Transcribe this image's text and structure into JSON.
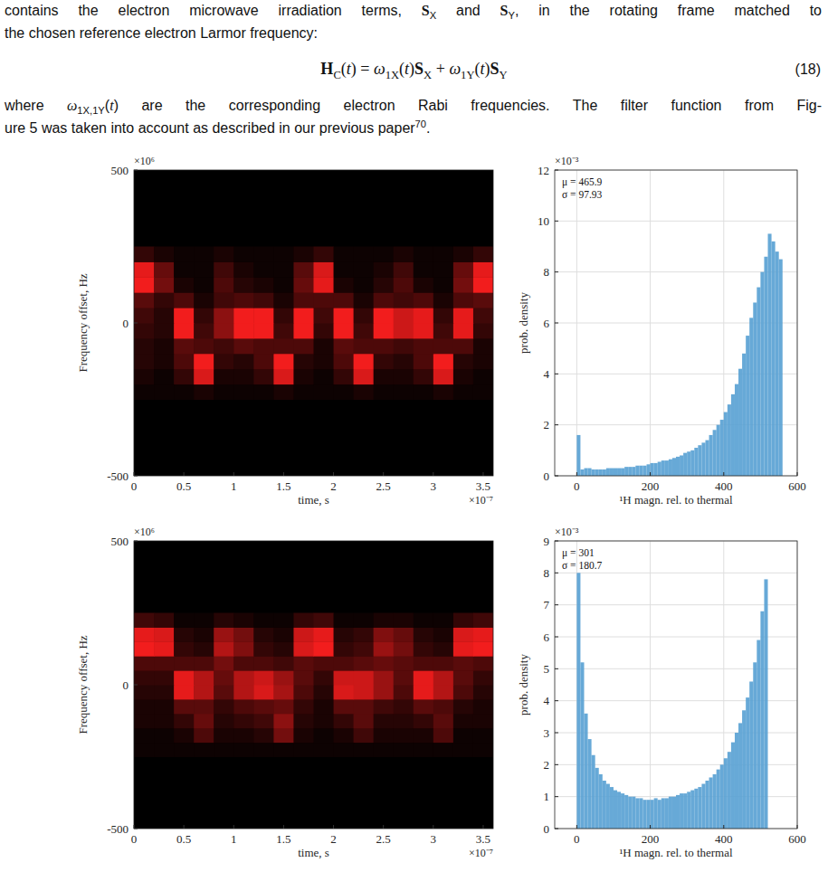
{
  "text": {
    "lines_before": [
      [
        {
          "text": "contains the electron microwave irradiation terms, ",
          "style": "normal"
        },
        {
          "text": "S",
          "style": "bold"
        },
        {
          "text": "X",
          "style": "sub"
        },
        {
          "text": " and ",
          "style": "normal"
        },
        {
          "text": "S",
          "style": "bold"
        },
        {
          "text": "Y",
          "style": "sub"
        },
        {
          "text": ", in the rotating frame matched to",
          "style": "normal"
        }
      ],
      [
        {
          "text": "the chosen reference electron Larmor frequency:",
          "style": "normal"
        }
      ]
    ],
    "equation": {
      "segments": [
        {
          "text": "H",
          "style": "bold"
        },
        {
          "text": "C",
          "style": "sub"
        },
        {
          "text": "(",
          "style": "normal"
        },
        {
          "text": "t",
          "style": "italic"
        },
        {
          "text": ") = ",
          "style": "normal"
        },
        {
          "text": "ω",
          "style": "italic"
        },
        {
          "text": "1X",
          "style": "sub"
        },
        {
          "text": "(",
          "style": "normal"
        },
        {
          "text": "t",
          "style": "italic"
        },
        {
          "text": ")",
          "style": "normal"
        },
        {
          "text": "S",
          "style": "bold"
        },
        {
          "text": "X",
          "style": "sub"
        },
        {
          "text": " + ",
          "style": "normal"
        },
        {
          "text": "ω",
          "style": "italic"
        },
        {
          "text": "1Y",
          "style": "sub"
        },
        {
          "text": "(",
          "style": "normal"
        },
        {
          "text": "t",
          "style": "italic"
        },
        {
          "text": ")",
          "style": "normal"
        },
        {
          "text": "S",
          "style": "bold"
        },
        {
          "text": "Y",
          "style": "sub"
        }
      ],
      "number": "(18)"
    },
    "lines_after": [
      [
        {
          "text": "where ",
          "style": "normal"
        },
        {
          "text": "ω",
          "style": "italic"
        },
        {
          "text": "1X,1Y",
          "style": "sub"
        },
        {
          "text": "(",
          "style": "normal"
        },
        {
          "text": "t",
          "style": "italic"
        },
        {
          "text": ")",
          "style": "normal"
        },
        {
          "text": " are the corresponding electron Rabi frequencies. The filter function from Fig-",
          "style": "normal"
        }
      ],
      [
        {
          "text": "ure 5 was taken into account as described in our previous paper",
          "style": "normal"
        },
        {
          "text": "70",
          "style": "sup"
        },
        {
          "text": ".",
          "style": "normal"
        }
      ]
    ]
  },
  "chart_data": [
    {
      "type": "heatmap",
      "x_label": "time, s",
      "y_label": "Frequency offset, Hz",
      "x_multiplier": "×10⁻⁷",
      "y_multiplier": "×10⁶",
      "xlim": [
        0,
        3.6
      ],
      "ylim": [
        -500,
        500
      ],
      "xticks": [
        0,
        0.5,
        1,
        1.5,
        2,
        2.5,
        3,
        3.5
      ],
      "yticks": [
        -500,
        0,
        500
      ],
      "grid": false,
      "color": "#ff1e1e",
      "x_edges": [
        0,
        0.2,
        0.4,
        0.6,
        0.8,
        1.0,
        1.2,
        1.4,
        1.6,
        1.8,
        2.0,
        2.2,
        2.4,
        2.6,
        2.8,
        3.0,
        3.2,
        3.4,
        3.6
      ],
      "y_edges": [
        -250,
        -200,
        -150,
        -100,
        -50,
        0,
        50,
        100,
        150,
        200,
        250
      ],
      "cells": [
        [
          0.05,
          0.05,
          0.05,
          0.1,
          0.05,
          0.05,
          0.05,
          0.1,
          0.05,
          0.05,
          0.05,
          0.1,
          0.05,
          0.05,
          0.05,
          0.1,
          0.05,
          0.05
        ],
        [
          0.1,
          0.05,
          0.2,
          0.85,
          0.1,
          0.1,
          0.2,
          0.85,
          0.1,
          0.05,
          0.2,
          0.85,
          0.1,
          0.1,
          0.2,
          0.85,
          0.1,
          0.05
        ],
        [
          0.15,
          0.1,
          0.3,
          0.95,
          0.2,
          0.15,
          0.3,
          0.95,
          0.15,
          0.1,
          0.3,
          0.95,
          0.2,
          0.15,
          0.3,
          0.95,
          0.15,
          0.1
        ],
        [
          0.15,
          0.1,
          0.35,
          0.3,
          0.25,
          0.35,
          0.3,
          0.3,
          0.3,
          0.1,
          0.35,
          0.3,
          0.3,
          0.25,
          0.3,
          0.3,
          0.3,
          0.1
        ],
        [
          0.2,
          0.15,
          0.95,
          0.25,
          0.55,
          0.95,
          0.95,
          0.25,
          0.95,
          0.2,
          0.95,
          0.25,
          0.95,
          0.8,
          0.9,
          0.25,
          0.9,
          0.2
        ],
        [
          0.25,
          0.15,
          0.95,
          0.2,
          0.55,
          0.95,
          0.95,
          0.2,
          0.95,
          0.25,
          0.95,
          0.2,
          0.95,
          0.8,
          0.9,
          0.2,
          0.9,
          0.25
        ],
        [
          0.35,
          0.2,
          0.3,
          0.1,
          0.25,
          0.3,
          0.25,
          0.1,
          0.3,
          0.3,
          0.3,
          0.1,
          0.3,
          0.25,
          0.3,
          0.1,
          0.3,
          0.35
        ],
        [
          0.95,
          0.45,
          0.1,
          0.05,
          0.3,
          0.15,
          0.1,
          0.05,
          0.4,
          0.9,
          0.1,
          0.05,
          0.15,
          0.3,
          0.1,
          0.05,
          0.45,
          0.95
        ],
        [
          0.9,
          0.4,
          0.05,
          0.05,
          0.25,
          0.1,
          0.05,
          0.05,
          0.35,
          0.85,
          0.05,
          0.05,
          0.1,
          0.25,
          0.05,
          0.05,
          0.4,
          0.9
        ],
        [
          0.2,
          0.1,
          0.05,
          0.05,
          0.1,
          0.05,
          0.05,
          0.05,
          0.1,
          0.2,
          0.05,
          0.05,
          0.05,
          0.1,
          0.05,
          0.05,
          0.1,
          0.2
        ]
      ]
    },
    {
      "type": "histogram",
      "x_label": "¹H magn. rel. to thermal",
      "y_label": "prob. density",
      "y_multiplier": "×10⁻³",
      "xlim": [
        -60,
        600
      ],
      "ylim": [
        0,
        12
      ],
      "xticks": [
        0,
        200,
        400,
        600
      ],
      "yticks": [
        0,
        2,
        4,
        6,
        8,
        10,
        12
      ],
      "grid": true,
      "color": "#56a0d3",
      "annotations": [
        "μ = 465.9",
        "σ = 97.93"
      ],
      "bins": [
        0,
        10,
        20,
        30,
        40,
        50,
        60,
        70,
        80,
        90,
        100,
        110,
        120,
        130,
        140,
        150,
        160,
        170,
        180,
        190,
        200,
        210,
        220,
        230,
        240,
        250,
        260,
        270,
        280,
        290,
        300,
        310,
        320,
        330,
        340,
        350,
        360,
        370,
        380,
        390,
        400,
        410,
        420,
        430,
        440,
        450,
        460,
        470,
        480,
        490,
        500,
        510,
        520,
        530,
        540,
        550,
        560
      ],
      "counts": [
        1.6,
        0.25,
        0.3,
        0.3,
        0.25,
        0.25,
        0.25,
        0.25,
        0.3,
        0.3,
        0.3,
        0.3,
        0.3,
        0.35,
        0.35,
        0.35,
        0.4,
        0.4,
        0.4,
        0.45,
        0.5,
        0.5,
        0.55,
        0.6,
        0.6,
        0.65,
        0.7,
        0.75,
        0.8,
        0.9,
        0.95,
        1.0,
        1.1,
        1.2,
        1.3,
        1.4,
        1.6,
        1.8,
        2.0,
        2.2,
        2.5,
        2.8,
        3.2,
        3.6,
        4.2,
        4.8,
        5.5,
        6.2,
        6.8,
        7.4,
        8.0,
        8.6,
        9.5,
        9.2,
        8.8,
        8.5
      ]
    },
    {
      "type": "heatmap",
      "x_label": "time, s",
      "y_label": "Frequency offset, Hz",
      "x_multiplier": "×10⁻⁷",
      "y_multiplier": "×10⁶",
      "xlim": [
        0,
        3.6
      ],
      "ylim": [
        -500,
        500
      ],
      "xticks": [
        0,
        0.5,
        1,
        1.5,
        2,
        2.5,
        3,
        3.5
      ],
      "yticks": [
        -500,
        0,
        500
      ],
      "grid": false,
      "color": "#ff1e1e",
      "x_edges": [
        0,
        0.2,
        0.4,
        0.6,
        0.8,
        1.0,
        1.2,
        1.4,
        1.6,
        1.8,
        2.0,
        2.2,
        2.4,
        2.6,
        2.8,
        3.0,
        3.2,
        3.4,
        3.6
      ],
      "y_edges": [
        -250,
        -200,
        -150,
        -100,
        -50,
        0,
        50,
        100,
        150,
        200,
        250
      ],
      "cells": [
        [
          0.05,
          0.05,
          0.05,
          0.05,
          0.05,
          0.05,
          0.05,
          0.05,
          0.05,
          0.05,
          0.05,
          0.05,
          0.05,
          0.05,
          0.05,
          0.05,
          0.05,
          0.05
        ],
        [
          0.05,
          0.05,
          0.1,
          0.3,
          0.1,
          0.1,
          0.15,
          0.45,
          0.1,
          0.05,
          0.1,
          0.25,
          0.1,
          0.1,
          0.1,
          0.3,
          0.05,
          0.05
        ],
        [
          0.1,
          0.1,
          0.2,
          0.4,
          0.15,
          0.2,
          0.25,
          0.55,
          0.15,
          0.1,
          0.2,
          0.35,
          0.15,
          0.15,
          0.2,
          0.35,
          0.1,
          0.1
        ],
        [
          0.1,
          0.1,
          0.35,
          0.35,
          0.2,
          0.3,
          0.35,
          0.4,
          0.2,
          0.1,
          0.35,
          0.35,
          0.25,
          0.2,
          0.35,
          0.3,
          0.15,
          0.1
        ],
        [
          0.15,
          0.15,
          0.9,
          0.7,
          0.35,
          0.7,
          0.85,
          0.65,
          0.3,
          0.15,
          0.85,
          0.8,
          0.6,
          0.3,
          0.9,
          0.7,
          0.3,
          0.15
        ],
        [
          0.2,
          0.2,
          0.9,
          0.7,
          0.4,
          0.7,
          0.8,
          0.6,
          0.35,
          0.2,
          0.8,
          0.8,
          0.6,
          0.35,
          0.9,
          0.7,
          0.35,
          0.2
        ],
        [
          0.3,
          0.3,
          0.3,
          0.3,
          0.45,
          0.3,
          0.3,
          0.25,
          0.35,
          0.3,
          0.3,
          0.35,
          0.4,
          0.35,
          0.3,
          0.3,
          0.35,
          0.3
        ],
        [
          0.95,
          0.9,
          0.2,
          0.15,
          0.7,
          0.5,
          0.2,
          0.15,
          0.85,
          0.95,
          0.2,
          0.25,
          0.6,
          0.45,
          0.2,
          0.15,
          0.9,
          0.95
        ],
        [
          0.9,
          0.85,
          0.15,
          0.1,
          0.6,
          0.45,
          0.15,
          0.1,
          0.8,
          0.9,
          0.15,
          0.2,
          0.5,
          0.4,
          0.15,
          0.1,
          0.85,
          0.9
        ],
        [
          0.25,
          0.2,
          0.05,
          0.05,
          0.15,
          0.1,
          0.05,
          0.05,
          0.2,
          0.25,
          0.05,
          0.05,
          0.1,
          0.1,
          0.05,
          0.05,
          0.2,
          0.25
        ]
      ]
    },
    {
      "type": "histogram",
      "x_label": "¹H magn. rel. to thermal",
      "y_label": "prob. density",
      "y_multiplier": "×10⁻³",
      "xlim": [
        -60,
        600
      ],
      "ylim": [
        0,
        9
      ],
      "xticks": [
        0,
        200,
        400,
        600
      ],
      "yticks": [
        0,
        1,
        2,
        3,
        4,
        5,
        6,
        7,
        8,
        9
      ],
      "grid": true,
      "color": "#56a0d3",
      "annotations": [
        "μ = 301",
        "σ = 180.7"
      ],
      "bins": [
        0,
        10,
        20,
        30,
        40,
        50,
        60,
        70,
        80,
        90,
        100,
        110,
        120,
        130,
        140,
        150,
        160,
        170,
        180,
        190,
        200,
        210,
        220,
        230,
        240,
        250,
        260,
        270,
        280,
        290,
        300,
        310,
        320,
        330,
        340,
        350,
        360,
        370,
        380,
        390,
        400,
        410,
        420,
        430,
        440,
        450,
        460,
        470,
        480,
        490,
        500,
        510,
        520
      ],
      "counts": [
        8.0,
        5.2,
        3.6,
        2.8,
        2.3,
        1.9,
        1.7,
        1.5,
        1.4,
        1.3,
        1.2,
        1.15,
        1.1,
        1.05,
        1.0,
        1.0,
        0.95,
        0.95,
        0.9,
        0.9,
        0.9,
        0.95,
        0.9,
        0.95,
        0.95,
        1.0,
        1.0,
        1.05,
        1.1,
        1.1,
        1.15,
        1.2,
        1.25,
        1.3,
        1.4,
        1.5,
        1.6,
        1.7,
        1.85,
        2.0,
        2.2,
        2.4,
        2.7,
        3.0,
        3.3,
        3.7,
        4.1,
        4.6,
        5.2,
        5.9,
        6.8,
        7.8
      ]
    }
  ]
}
